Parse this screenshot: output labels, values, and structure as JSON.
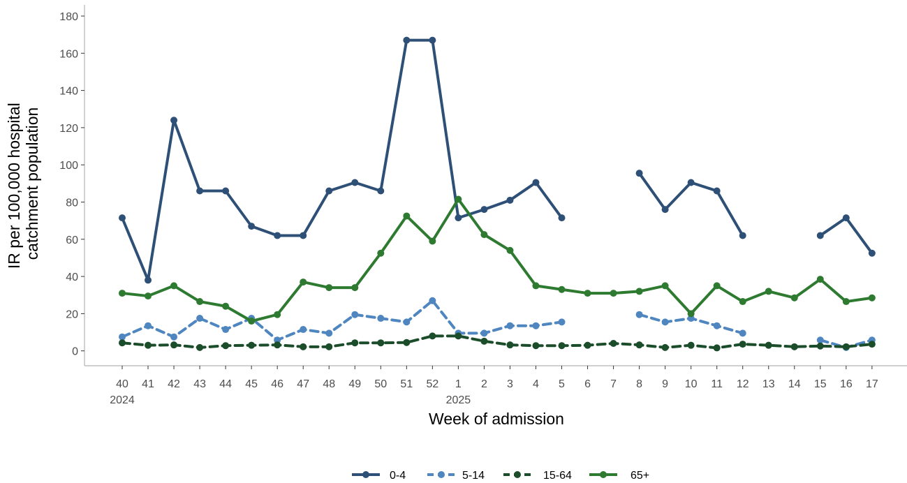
{
  "chart_data": {
    "type": "line",
    "xlabel": "Week of admission",
    "ylabel_lines": [
      "IR per 100,000 hospital",
      "catchment population"
    ],
    "ylim": [
      -8,
      186
    ],
    "yticks": [
      0,
      20,
      40,
      60,
      80,
      100,
      120,
      140,
      160,
      180
    ],
    "grid": false,
    "legend_position": "bottom",
    "categories": [
      "40",
      "41",
      "42",
      "43",
      "44",
      "45",
      "46",
      "47",
      "48",
      "49",
      "50",
      "51",
      "52",
      "1",
      "2",
      "3",
      "4",
      "5",
      "6",
      "7",
      "8",
      "9",
      "10",
      "11",
      "12",
      "13",
      "14",
      "15",
      "16",
      "17"
    ],
    "year_labels": [
      {
        "index": 0,
        "label": "2024"
      },
      {
        "index": 13,
        "label": "2025"
      }
    ],
    "series": [
      {
        "name": "0-4",
        "color": "#2e5077",
        "dash": "solid",
        "values": [
          71.5,
          38,
          124,
          86,
          86,
          67,
          62,
          62,
          86,
          90.5,
          86,
          167,
          167,
          71.5,
          76,
          81,
          90.5,
          71.5,
          null,
          null,
          95.5,
          76,
          90.5,
          86,
          62,
          null,
          null,
          62,
          71.5,
          52.5
        ]
      },
      {
        "name": "5-14",
        "color": "#4f86c0",
        "dash": "dashed",
        "values": [
          7.5,
          13.5,
          7.5,
          17.5,
          11.5,
          17.5,
          5.8,
          11.5,
          9.5,
          19.5,
          17.5,
          15.5,
          27,
          9.5,
          9.5,
          13.5,
          13.5,
          15.5,
          null,
          null,
          19.5,
          15.5,
          17.5,
          13.5,
          9.5,
          null,
          null,
          5.8,
          1.8,
          5.8
        ]
      },
      {
        "name": "15-64",
        "color": "#1b4d2b",
        "dash": "dashed",
        "values": [
          4.3,
          3,
          3.2,
          1.8,
          2.8,
          3,
          3.2,
          2.2,
          2.2,
          4.3,
          4.3,
          4.5,
          8,
          8,
          5.2,
          3.2,
          2.8,
          2.8,
          3,
          4,
          3.2,
          1.8,
          3,
          1.6,
          3.6,
          3,
          2.2,
          2.6,
          2.2,
          3.6
        ]
      },
      {
        "name": "65+",
        "color": "#2d7a30",
        "dash": "solid",
        "values": [
          31,
          29.5,
          35,
          26.5,
          24,
          16,
          19.5,
          37,
          34,
          34,
          52.5,
          72.5,
          59,
          81.5,
          62.5,
          54,
          35,
          33,
          31,
          31,
          32,
          35,
          20,
          35,
          26.5,
          32,
          28.5,
          38.5,
          26.5,
          28.5
        ]
      }
    ]
  }
}
